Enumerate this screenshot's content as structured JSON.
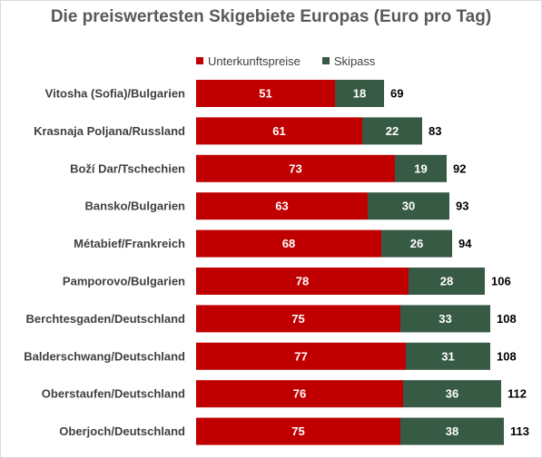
{
  "chart_data": {
    "type": "bar",
    "orientation": "horizontal",
    "stacked": true,
    "title": "Die preiswertesten Skigebiete Europas (Euro pro Tag)",
    "categories": [
      "Vitosha (Sofia)/Bulgarien",
      "Krasnaja Poljana/Russland",
      "Boží Dar/Tschechien",
      "Bansko/Bulgarien",
      "Métabief/Frankreich",
      "Pamporovo/Bulgarien",
      "Berchtesgaden/Deutschland",
      "Balderschwang/Deutschland",
      "Oberstaufen/Deutschland",
      "Oberjoch/Deutschland"
    ],
    "series": [
      {
        "name": "Unterkunftspreise",
        "color": "#c00000",
        "values": [
          51,
          61,
          73,
          63,
          68,
          78,
          75,
          77,
          76,
          75
        ]
      },
      {
        "name": "Skipass",
        "color": "#375a45",
        "values": [
          18,
          22,
          19,
          30,
          26,
          28,
          33,
          31,
          36,
          38
        ]
      }
    ],
    "totals": [
      69,
      83,
      92,
      93,
      94,
      106,
      108,
      108,
      112,
      113
    ],
    "legend": "top",
    "grid": false
  }
}
